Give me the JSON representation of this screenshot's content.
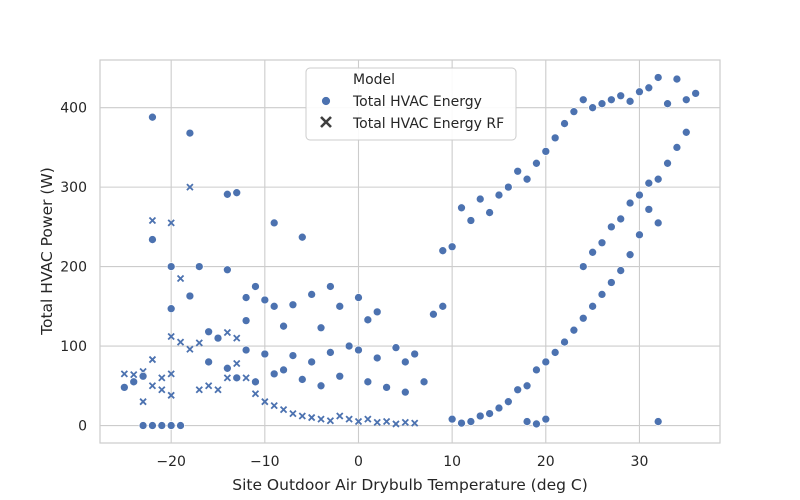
{
  "chart_data": {
    "type": "scatter",
    "xlabel": "Site Outdoor Air Drybulb Temperature (deg C)",
    "ylabel": "Total HVAC Power (W)",
    "xlim": [
      -27.6,
      38.6
    ],
    "ylim": [
      -22,
      460
    ],
    "xticks": [
      -20,
      -10,
      0,
      10,
      20,
      30
    ],
    "yticks": [
      0,
      100,
      200,
      300,
      400
    ],
    "grid": true,
    "legend": {
      "title": "Model",
      "placement": "upper center",
      "entries": [
        "Total HVAC Energy",
        "Total HVAC Energy RF"
      ]
    },
    "colors": {
      "series": "#4c72b0",
      "grid": "#cccccc",
      "frame": "#cccccc"
    },
    "series": [
      {
        "name": "Total HVAC Energy",
        "marker": "circle",
        "points": [
          [
            -22,
            388
          ],
          [
            -18,
            368
          ],
          [
            -14,
            291
          ],
          [
            -13,
            293
          ],
          [
            -9,
            255
          ],
          [
            -6,
            237
          ],
          [
            -22,
            234
          ],
          [
            -20,
            200
          ],
          [
            -17,
            200
          ],
          [
            -14,
            196
          ],
          [
            -18,
            163
          ],
          [
            -12,
            161
          ],
          [
            -11,
            175
          ],
          [
            -5,
            165
          ],
          [
            -3,
            175
          ],
          [
            0,
            161
          ],
          [
            -10,
            158
          ],
          [
            -9,
            150
          ],
          [
            -7,
            152
          ],
          [
            -20,
            147
          ],
          [
            -2,
            150
          ],
          [
            1,
            133
          ],
          [
            2,
            143
          ],
          [
            -4,
            123
          ],
          [
            -8,
            125
          ],
          [
            -12,
            132
          ],
          [
            -16,
            118
          ],
          [
            -15,
            110
          ],
          [
            -12,
            95
          ],
          [
            -10,
            90
          ],
          [
            -7,
            88
          ],
          [
            -5,
            80
          ],
          [
            -3,
            92
          ],
          [
            -1,
            100
          ],
          [
            0,
            95
          ],
          [
            2,
            85
          ],
          [
            4,
            98
          ],
          [
            5,
            80
          ],
          [
            6,
            90
          ],
          [
            -25,
            48
          ],
          [
            -24,
            55
          ],
          [
            -23,
            62
          ],
          [
            -23,
            0
          ],
          [
            -22,
            0
          ],
          [
            -21,
            0
          ],
          [
            -20,
            0
          ],
          [
            -19,
            0
          ],
          [
            -16,
            80
          ],
          [
            -14,
            72
          ],
          [
            -13,
            60
          ],
          [
            -11,
            55
          ],
          [
            -9,
            65
          ],
          [
            -8,
            70
          ],
          [
            -6,
            58
          ],
          [
            -4,
            50
          ],
          [
            -2,
            62
          ],
          [
            1,
            55
          ],
          [
            3,
            48
          ],
          [
            5,
            42
          ],
          [
            7,
            55
          ],
          [
            8,
            140
          ],
          [
            9,
            150
          ],
          [
            9,
            220
          ],
          [
            10,
            225
          ],
          [
            11,
            274
          ],
          [
            12,
            258
          ],
          [
            13,
            285
          ],
          [
            14,
            268
          ],
          [
            15,
            290
          ],
          [
            16,
            300
          ],
          [
            17,
            320
          ],
          [
            18,
            310
          ],
          [
            19,
            330
          ],
          [
            20,
            345
          ],
          [
            21,
            362
          ],
          [
            22,
            380
          ],
          [
            23,
            395
          ],
          [
            24,
            410
          ],
          [
            25,
            400
          ],
          [
            26,
            405
          ],
          [
            27,
            410
          ],
          [
            28,
            415
          ],
          [
            29,
            408
          ],
          [
            30,
            420
          ],
          [
            31,
            425
          ],
          [
            32,
            438
          ],
          [
            33,
            405
          ],
          [
            34,
            436
          ],
          [
            35,
            410
          ],
          [
            36,
            418
          ],
          [
            35,
            369
          ],
          [
            34,
            350
          ],
          [
            33,
            330
          ],
          [
            32,
            310
          ],
          [
            31,
            305
          ],
          [
            30,
            290
          ],
          [
            29,
            280
          ],
          [
            28,
            260
          ],
          [
            27,
            250
          ],
          [
            26,
            230
          ],
          [
            25,
            218
          ],
          [
            24,
            200
          ],
          [
            31,
            272
          ],
          [
            32,
            255
          ],
          [
            30,
            240
          ],
          [
            29,
            215
          ],
          [
            28,
            195
          ],
          [
            27,
            180
          ],
          [
            26,
            165
          ],
          [
            25,
            150
          ],
          [
            24,
            135
          ],
          [
            23,
            120
          ],
          [
            22,
            105
          ],
          [
            21,
            92
          ],
          [
            20,
            80
          ],
          [
            19,
            70
          ],
          [
            18,
            50
          ],
          [
            17,
            45
          ],
          [
            16,
            30
          ],
          [
            15,
            22
          ],
          [
            14,
            15
          ],
          [
            13,
            12
          ],
          [
            12,
            5
          ],
          [
            11,
            3
          ],
          [
            10,
            8
          ],
          [
            18,
            5
          ],
          [
            19,
            2
          ],
          [
            20,
            8
          ],
          [
            32,
            5
          ]
        ]
      },
      {
        "name": "Total HVAC Energy RF",
        "marker": "x",
        "points": [
          [
            -18,
            300
          ],
          [
            -22,
            258
          ],
          [
            -20,
            255
          ],
          [
            -19,
            185
          ],
          [
            -20,
            112
          ],
          [
            -19,
            105
          ],
          [
            -17,
            104
          ],
          [
            -18,
            96
          ],
          [
            -22,
            83
          ],
          [
            -25,
            65
          ],
          [
            -24,
            64
          ],
          [
            -23,
            68
          ],
          [
            -21,
            60
          ],
          [
            -20,
            65
          ],
          [
            -21,
            45
          ],
          [
            -22,
            50
          ],
          [
            -23,
            30
          ],
          [
            -20,
            38
          ],
          [
            -17,
            45
          ],
          [
            -16,
            50
          ],
          [
            -15,
            45
          ],
          [
            -14,
            60
          ],
          [
            -14,
            117
          ],
          [
            -13,
            110
          ],
          [
            -13,
            78
          ],
          [
            -12,
            60
          ],
          [
            -11,
            40
          ],
          [
            -10,
            30
          ],
          [
            -9,
            25
          ],
          [
            -8,
            20
          ],
          [
            -7,
            15
          ],
          [
            -6,
            12
          ],
          [
            -5,
            10
          ],
          [
            -4,
            8
          ],
          [
            -3,
            6
          ],
          [
            -2,
            12
          ],
          [
            -1,
            8
          ],
          [
            0,
            5
          ],
          [
            1,
            8
          ],
          [
            2,
            4
          ],
          [
            3,
            5
          ],
          [
            4,
            2
          ],
          [
            5,
            4
          ],
          [
            6,
            3
          ]
        ]
      }
    ]
  }
}
